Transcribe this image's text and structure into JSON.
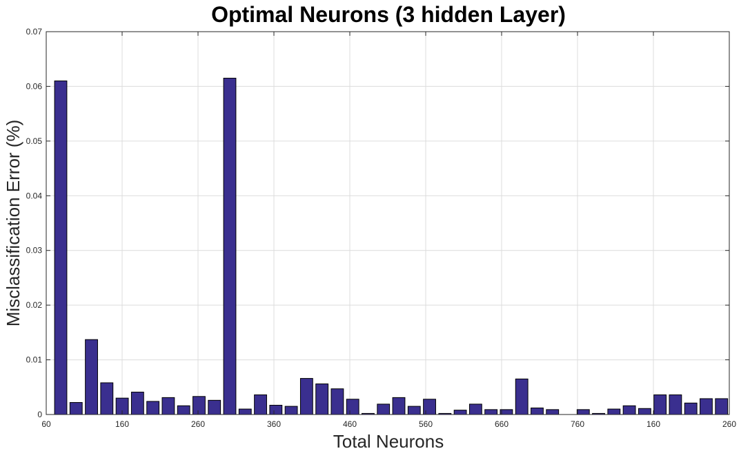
{
  "chart_data": {
    "type": "bar",
    "title": "Optimal Neurons (3 hidden Layer)",
    "xlabel": "Total Neurons",
    "ylabel": "Misclassification Error (%)",
    "ylim": [
      0,
      0.07
    ],
    "grid": true,
    "bar_color": "#3a2f8f",
    "yticks": [
      "0",
      "0.01",
      "0.02",
      "0.03",
      "0.04",
      "0.05",
      "0.06",
      "0.07"
    ],
    "xticks": [
      "60",
      "160",
      "260",
      "360",
      "460",
      "560",
      "660",
      "760",
      "160",
      "260"
    ],
    "values": [
      0.061,
      0.0022,
      0.0137,
      0.0058,
      0.003,
      0.0041,
      0.0024,
      0.0031,
      0.0016,
      0.0033,
      0.0026,
      0.0615,
      0.001,
      0.0036,
      0.0017,
      0.0015,
      0.0066,
      0.0056,
      0.0047,
      0.0028,
      0.0002,
      0.0019,
      0.0031,
      0.0015,
      0.0028,
      0.0002,
      0.0008,
      0.0019,
      0.0009,
      0.0009,
      0.0065,
      0.0012,
      0.0009,
      0.0,
      0.0009,
      0.0002,
      0.001,
      0.0016,
      0.0011,
      0.0036,
      0.0036,
      0.0021,
      0.0029,
      0.0029
    ]
  }
}
